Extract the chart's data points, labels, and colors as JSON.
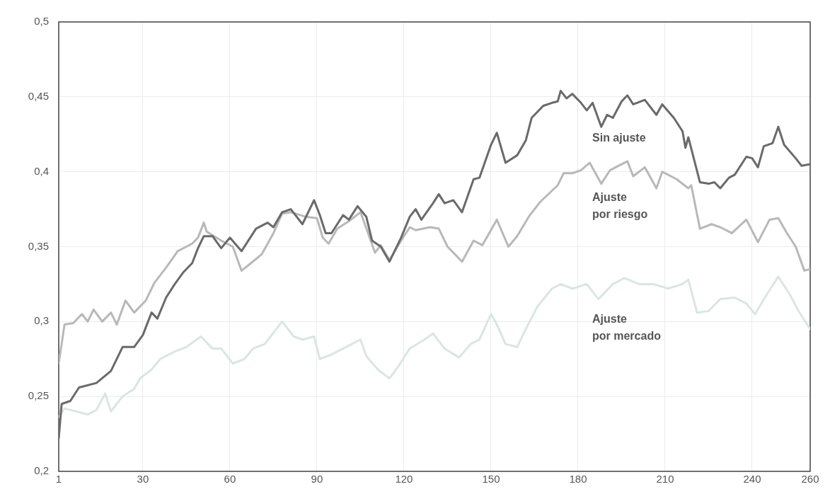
{
  "chart_data": {
    "type": "line",
    "xlim": [
      1,
      260
    ],
    "xticks": [
      1,
      30,
      60,
      90,
      120,
      150,
      180,
      210,
      240,
      260
    ],
    "ylim": [
      0.2,
      0.5
    ],
    "yticks": [
      {
        "value": 0.2,
        "label": "0,2"
      },
      {
        "value": 0.25,
        "label": "0,25"
      },
      {
        "value": 0.3,
        "label": "0,3"
      },
      {
        "value": 0.35,
        "label": "0,35"
      },
      {
        "value": 0.4,
        "label": "0,4"
      },
      {
        "value": 0.45,
        "label": "0,45"
      },
      {
        "value": 0.5,
        "label": "0,5"
      }
    ],
    "grid": true,
    "legend": false,
    "marker": "none",
    "line_style": "solid",
    "series": [
      {
        "name": "Sin ajuste",
        "color": "#6a6a6a",
        "x": [
          1,
          2,
          5,
          8,
          14,
          19,
          23,
          27,
          30,
          33,
          35,
          38,
          41,
          44,
          47,
          49,
          51,
          54,
          57,
          60,
          64,
          69,
          73,
          75,
          78,
          81,
          85,
          89,
          91,
          93,
          95,
          97,
          99,
          101,
          104,
          107,
          109,
          112,
          115,
          119,
          122,
          124,
          126,
          130,
          132,
          134,
          137,
          140,
          144,
          146,
          150,
          152,
          155,
          159,
          162,
          164,
          168,
          171,
          173,
          174,
          176,
          178,
          181,
          183,
          185,
          188,
          190,
          192,
          195,
          197,
          199,
          203,
          207,
          209,
          213,
          216,
          217,
          218,
          222,
          225,
          227,
          229,
          232,
          234,
          238,
          240,
          242,
          244,
          247,
          249,
          251,
          255,
          257,
          260
        ],
        "values": [
          0.222,
          0.245,
          0.247,
          0.256,
          0.259,
          0.267,
          0.283,
          0.283,
          0.291,
          0.306,
          0.302,
          0.316,
          0.325,
          0.333,
          0.339,
          0.349,
          0.357,
          0.357,
          0.349,
          0.356,
          0.347,
          0.362,
          0.366,
          0.363,
          0.373,
          0.375,
          0.365,
          0.381,
          0.371,
          0.359,
          0.359,
          0.365,
          0.371,
          0.368,
          0.377,
          0.37,
          0.354,
          0.35,
          0.34,
          0.356,
          0.37,
          0.375,
          0.368,
          0.379,
          0.385,
          0.379,
          0.381,
          0.373,
          0.395,
          0.396,
          0.418,
          0.426,
          0.406,
          0.411,
          0.421,
          0.436,
          0.444,
          0.446,
          0.447,
          0.454,
          0.449,
          0.452,
          0.446,
          0.441,
          0.446,
          0.43,
          0.438,
          0.436,
          0.447,
          0.451,
          0.445,
          0.448,
          0.438,
          0.445,
          0.436,
          0.427,
          0.416,
          0.423,
          0.393,
          0.392,
          0.393,
          0.389,
          0.396,
          0.398,
          0.41,
          0.409,
          0.403,
          0.417,
          0.419,
          0.43,
          0.418,
          0.409,
          0.404,
          0.405
        ]
      },
      {
        "name": "Ajuste por riesgo",
        "color": "#b8b8b8",
        "x": [
          1,
          3,
          6,
          9,
          11,
          13,
          16,
          19,
          21,
          24,
          27,
          31,
          34,
          38,
          42,
          47,
          49,
          51,
          52,
          57,
          61,
          64,
          66,
          71,
          75,
          78,
          81,
          86,
          90,
          92,
          94,
          97,
          101,
          105,
          108,
          110,
          112,
          115,
          119,
          122,
          124,
          129,
          132,
          135,
          140,
          144,
          147,
          152,
          156,
          159,
          163,
          167,
          173,
          175,
          178,
          181,
          184,
          188,
          191,
          194,
          197,
          199,
          203,
          207,
          209,
          214,
          218,
          219,
          222,
          226,
          229,
          233,
          238,
          242,
          246,
          249,
          252,
          255,
          258,
          260
        ],
        "values": [
          0.272,
          0.298,
          0.299,
          0.305,
          0.3,
          0.308,
          0.3,
          0.306,
          0.298,
          0.314,
          0.306,
          0.314,
          0.326,
          0.336,
          0.347,
          0.352,
          0.356,
          0.366,
          0.36,
          0.354,
          0.35,
          0.334,
          0.337,
          0.345,
          0.359,
          0.372,
          0.373,
          0.37,
          0.369,
          0.356,
          0.352,
          0.362,
          0.367,
          0.373,
          0.357,
          0.346,
          0.351,
          0.341,
          0.354,
          0.363,
          0.361,
          0.363,
          0.362,
          0.35,
          0.34,
          0.354,
          0.351,
          0.368,
          0.35,
          0.357,
          0.37,
          0.38,
          0.391,
          0.399,
          0.399,
          0.401,
          0.406,
          0.392,
          0.401,
          0.404,
          0.407,
          0.397,
          0.403,
          0.389,
          0.4,
          0.395,
          0.389,
          0.391,
          0.362,
          0.365,
          0.363,
          0.359,
          0.368,
          0.353,
          0.368,
          0.369,
          0.359,
          0.35,
          0.334,
          0.335
        ]
      },
      {
        "name": "Ajuste por mercado",
        "color": "#d9e6e3",
        "x": [
          1,
          3,
          7,
          11,
          14,
          17,
          19,
          23,
          27,
          29,
          33,
          36,
          41,
          45,
          50,
          54,
          57,
          61,
          65,
          68,
          72,
          76,
          78,
          82,
          85,
          89,
          91,
          95,
          100,
          105,
          107,
          111,
          115,
          118,
          122,
          127,
          130,
          134,
          139,
          143,
          146,
          150,
          152,
          155,
          159,
          162,
          166,
          171,
          174,
          178,
          183,
          187,
          192,
          196,
          201,
          206,
          211,
          216,
          218,
          221,
          225,
          229,
          234,
          238,
          241,
          245,
          249,
          253,
          256,
          260
        ],
        "values": [
          0.236,
          0.242,
          0.24,
          0.238,
          0.241,
          0.252,
          0.24,
          0.25,
          0.255,
          0.262,
          0.268,
          0.275,
          0.28,
          0.283,
          0.29,
          0.282,
          0.282,
          0.272,
          0.275,
          0.282,
          0.285,
          0.295,
          0.3,
          0.29,
          0.288,
          0.29,
          0.275,
          0.278,
          0.283,
          0.288,
          0.277,
          0.268,
          0.262,
          0.27,
          0.282,
          0.288,
          0.292,
          0.282,
          0.276,
          0.285,
          0.288,
          0.305,
          0.298,
          0.285,
          0.283,
          0.295,
          0.31,
          0.322,
          0.325,
          0.322,
          0.325,
          0.315,
          0.325,
          0.329,
          0.325,
          0.325,
          0.322,
          0.325,
          0.328,
          0.306,
          0.307,
          0.315,
          0.316,
          0.312,
          0.305,
          0.318,
          0.33,
          0.318,
          0.307,
          0.295
        ]
      }
    ]
  }
}
